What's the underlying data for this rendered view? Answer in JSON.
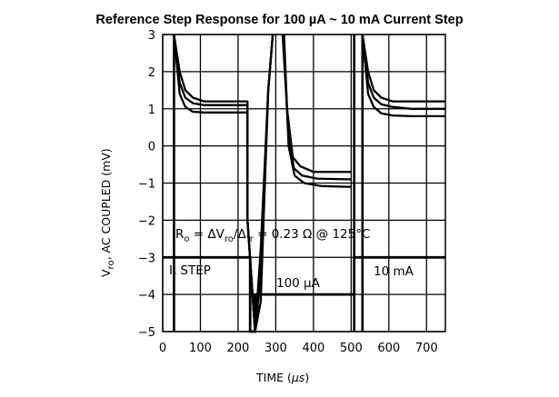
{
  "chart_data": {
    "type": "line",
    "title": "Reference Step Response for 100 µA ~ 10 mA Current Step",
    "xlabel_main": "TIME (",
    "xlabel_unit": "µs",
    "xlabel_end": ")",
    "ylabel_main": "V",
    "ylabel_sub": "ro",
    "ylabel_rest": ", AC COUPLED (mV)",
    "xlim": [
      0,
      750
    ],
    "ylim": [
      -5,
      3
    ],
    "x_ticks": [
      0,
      100,
      200,
      300,
      400,
      500,
      600,
      700
    ],
    "y_ticks": [
      3,
      2,
      1,
      0,
      -1,
      -2,
      -3,
      -4,
      -5
    ],
    "x_tick_labels": [
      "0",
      "100",
      "200",
      "300",
      "400",
      "500",
      "600",
      "700"
    ],
    "y_tick_labels": [
      "3",
      "2",
      "1",
      "0",
      "−1",
      "−2",
      "−3",
      "−4",
      "−5"
    ],
    "grid": true,
    "series": [
      {
        "values": [
          [
            30,
            3.0
          ],
          [
            45,
            2.0
          ],
          [
            60,
            1.5
          ],
          [
            80,
            1.3
          ],
          [
            110,
            1.2
          ],
          [
            160,
            1.2
          ],
          [
            225,
            1.2
          ],
          [
            225,
            -2.0
          ],
          [
            245,
            -5.0
          ],
          [
            260,
            -4.2
          ],
          [
            280,
            1.5
          ],
          [
            292,
            3.0
          ]
        ]
      },
      {
        "values": [
          [
            30,
            3.0
          ],
          [
            45,
            1.7
          ],
          [
            60,
            1.3
          ],
          [
            80,
            1.15
          ],
          [
            110,
            1.1
          ],
          [
            160,
            1.1
          ],
          [
            225,
            1.1
          ],
          [
            225,
            -2.0
          ],
          [
            245,
            -5.0
          ],
          [
            260,
            -3.5
          ],
          [
            280,
            1.5
          ],
          [
            292,
            3.0
          ]
        ]
      },
      {
        "values": [
          [
            30,
            3.0
          ],
          [
            45,
            1.4
          ],
          [
            60,
            1.05
          ],
          [
            80,
            0.92
          ],
          [
            110,
            0.9
          ],
          [
            160,
            0.9
          ],
          [
            225,
            0.9
          ],
          [
            225,
            -2.0
          ],
          [
            245,
            -5.0
          ],
          [
            260,
            -2.8
          ],
          [
            280,
            1.5
          ],
          [
            292,
            3.0
          ]
        ]
      },
      {
        "values": [
          [
            318,
            3.0
          ],
          [
            330,
            1.0
          ],
          [
            345,
            -0.3
          ],
          [
            365,
            -0.55
          ],
          [
            400,
            -0.7
          ],
          [
            490,
            -0.7
          ],
          [
            500,
            -0.7
          ]
        ]
      },
      {
        "values": [
          [
            320,
            3.0
          ],
          [
            332,
            0.5
          ],
          [
            348,
            -0.6
          ],
          [
            370,
            -0.8
          ],
          [
            410,
            -0.88
          ],
          [
            490,
            -0.9
          ],
          [
            500,
            -0.9
          ]
        ]
      },
      {
        "values": [
          [
            322,
            3.0
          ],
          [
            334,
            0.0
          ],
          [
            350,
            -0.8
          ],
          [
            375,
            -1.0
          ],
          [
            420,
            -1.08
          ],
          [
            490,
            -1.1
          ],
          [
            500,
            -1.1
          ]
        ]
      },
      {
        "values": [
          [
            530,
            3.0
          ],
          [
            545,
            2.0
          ],
          [
            560,
            1.5
          ],
          [
            580,
            1.3
          ],
          [
            610,
            1.2
          ],
          [
            660,
            1.2
          ],
          [
            750,
            1.2
          ]
        ]
      },
      {
        "values": [
          [
            530,
            3.0
          ],
          [
            545,
            1.7
          ],
          [
            560,
            1.3
          ],
          [
            580,
            1.12
          ],
          [
            610,
            1.05
          ],
          [
            660,
            1.0
          ],
          [
            750,
            1.0
          ]
        ]
      },
      {
        "values": [
          [
            530,
            3.0
          ],
          [
            545,
            1.4
          ],
          [
            560,
            1.05
          ],
          [
            580,
            0.88
          ],
          [
            610,
            0.82
          ],
          [
            660,
            0.8
          ],
          [
            750,
            0.8
          ]
        ]
      }
    ],
    "current_step": [
      [
        0,
        -3.0
      ],
      [
        232,
        -3.0
      ],
      [
        232,
        -5.0
      ],
      [
        245,
        -5.0
      ],
      [
        245,
        -4.0
      ],
      [
        508,
        -4.0
      ],
      [
        508,
        -3.0
      ],
      [
        750,
        -3.0
      ]
    ],
    "extra_verticals": [
      {
        "x": 30,
        "y1": -5,
        "y2": 3
      },
      {
        "x": 508,
        "y1": -5,
        "y2": 3
      },
      {
        "x": 530,
        "y1": -5,
        "y2": 3
      }
    ],
    "annotations": {
      "formula": {
        "r": "R",
        "r_sub": "o",
        "eq": " = ΔV",
        "v_sub": "ro",
        "slash": "/ΔI",
        "i_sub": "r",
        "rest": " = 0.23 Ω @ 125°C"
      },
      "step_label": {
        "i": "I",
        "i_sub": "r",
        "rest": " STEP"
      },
      "low_current": "100 µA",
      "high_current": "10 mA"
    }
  }
}
